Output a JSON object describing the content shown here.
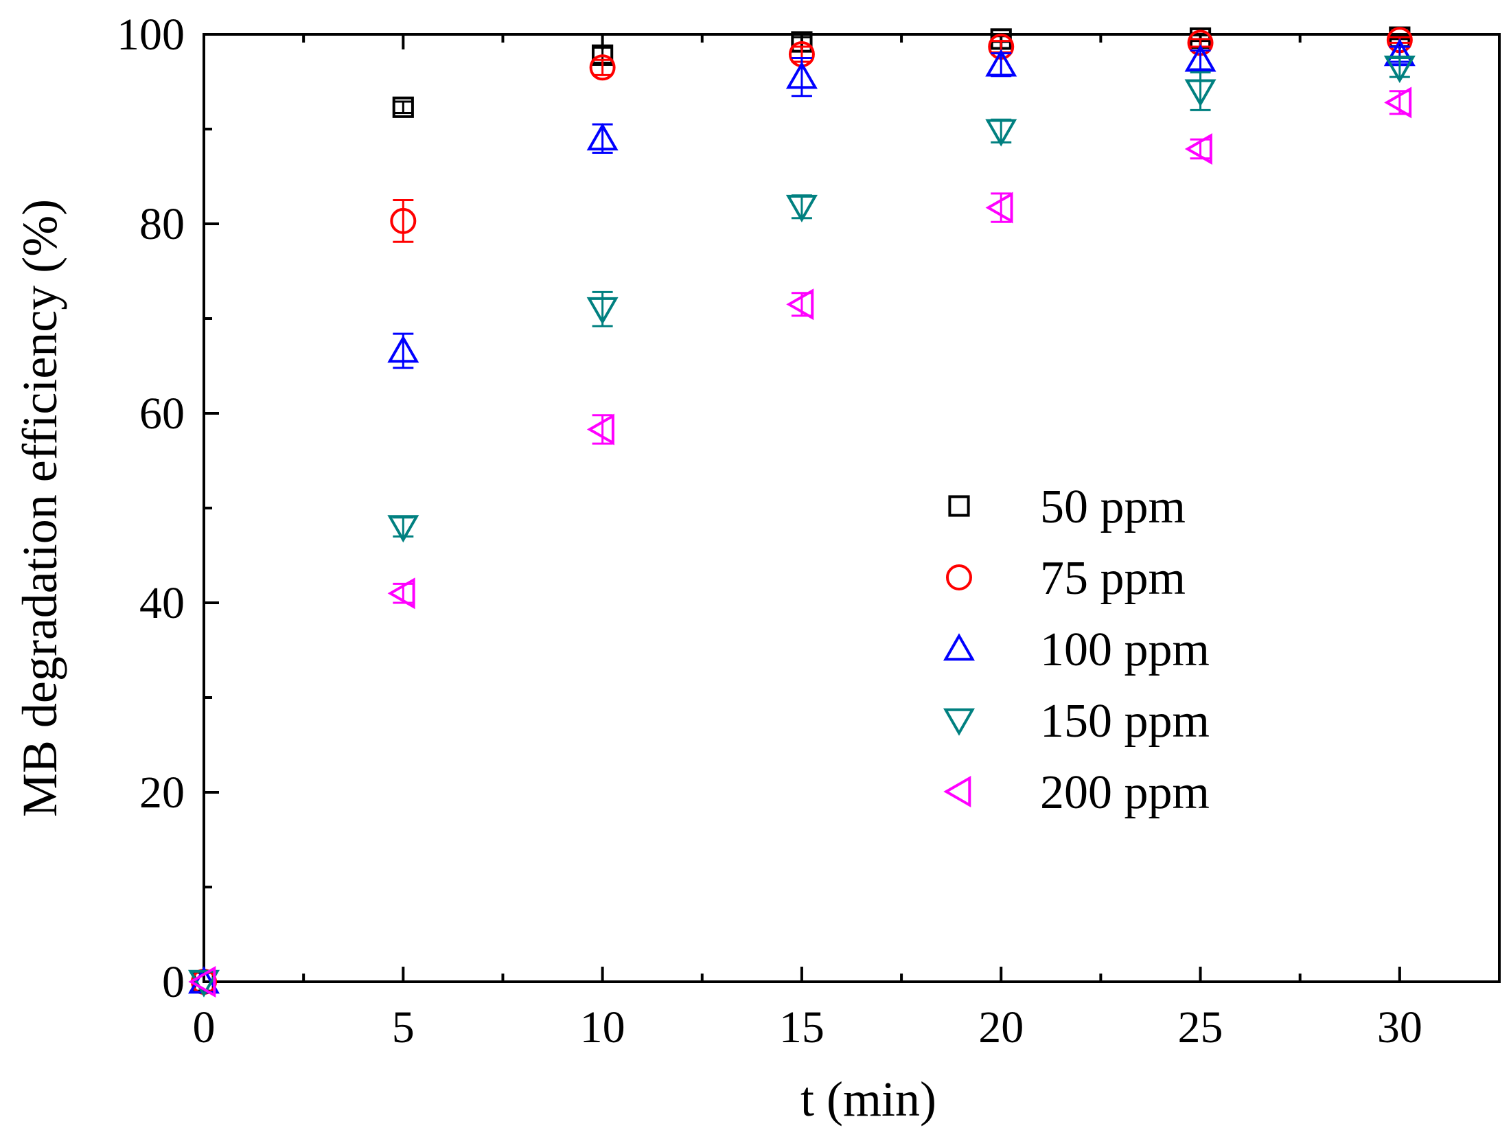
{
  "chart_data": {
    "type": "scatter",
    "title": "",
    "xlabel": "t (min)",
    "ylabel": "MB degradation efficiency (%)",
    "xlim": [
      0,
      32.5
    ],
    "ylim": [
      0,
      100
    ],
    "xticks": [
      0,
      5,
      10,
      15,
      20,
      25,
      30
    ],
    "yticks": [
      0,
      20,
      40,
      60,
      80,
      100
    ],
    "legend_position": "center-right",
    "series": [
      {
        "name": "50 ppm",
        "marker": "square",
        "color": "#000000",
        "x": [
          0,
          5,
          10,
          15,
          20,
          25,
          30
        ],
        "y": [
          0,
          92.3,
          97.8,
          99.2,
          99.5,
          99.6,
          99.7
        ],
        "err": [
          0,
          0.6,
          0.8,
          0.5,
          0.3,
          0.3,
          0.2
        ]
      },
      {
        "name": "75 ppm",
        "marker": "circle",
        "color": "#ff0000",
        "x": [
          0,
          5,
          10,
          15,
          20,
          25,
          30
        ],
        "y": [
          0,
          80.3,
          96.5,
          97.9,
          98.7,
          99.1,
          99.4
        ],
        "err": [
          0,
          2.2,
          0.8,
          0.8,
          0.6,
          0.4,
          0.3
        ]
      },
      {
        "name": "100 ppm",
        "marker": "triangle-up",
        "color": "#0000ff",
        "x": [
          0,
          5,
          10,
          15,
          20,
          25,
          30
        ],
        "y": [
          0,
          66.6,
          89.0,
          95.5,
          96.8,
          97.3,
          97.9
        ],
        "err": [
          0,
          1.8,
          1.5,
          2.0,
          1.2,
          1.0,
          0.8
        ]
      },
      {
        "name": "150 ppm",
        "marker": "triangle-down",
        "color": "#008080",
        "x": [
          0,
          5,
          10,
          15,
          20,
          25,
          30
        ],
        "y": [
          0,
          48.0,
          71.0,
          81.8,
          89.8,
          94.0,
          96.5
        ],
        "err": [
          0,
          1.0,
          1.8,
          1.2,
          1.2,
          2.0,
          1.0
        ]
      },
      {
        "name": "200 ppm",
        "marker": "triangle-left",
        "color": "#ff00ff",
        "x": [
          0,
          5,
          10,
          15,
          20,
          25,
          30
        ],
        "y": [
          0,
          41.0,
          58.3,
          71.5,
          81.7,
          87.9,
          92.8
        ],
        "err": [
          0,
          1.0,
          1.5,
          1.2,
          1.5,
          1.0,
          1.2
        ]
      }
    ]
  }
}
